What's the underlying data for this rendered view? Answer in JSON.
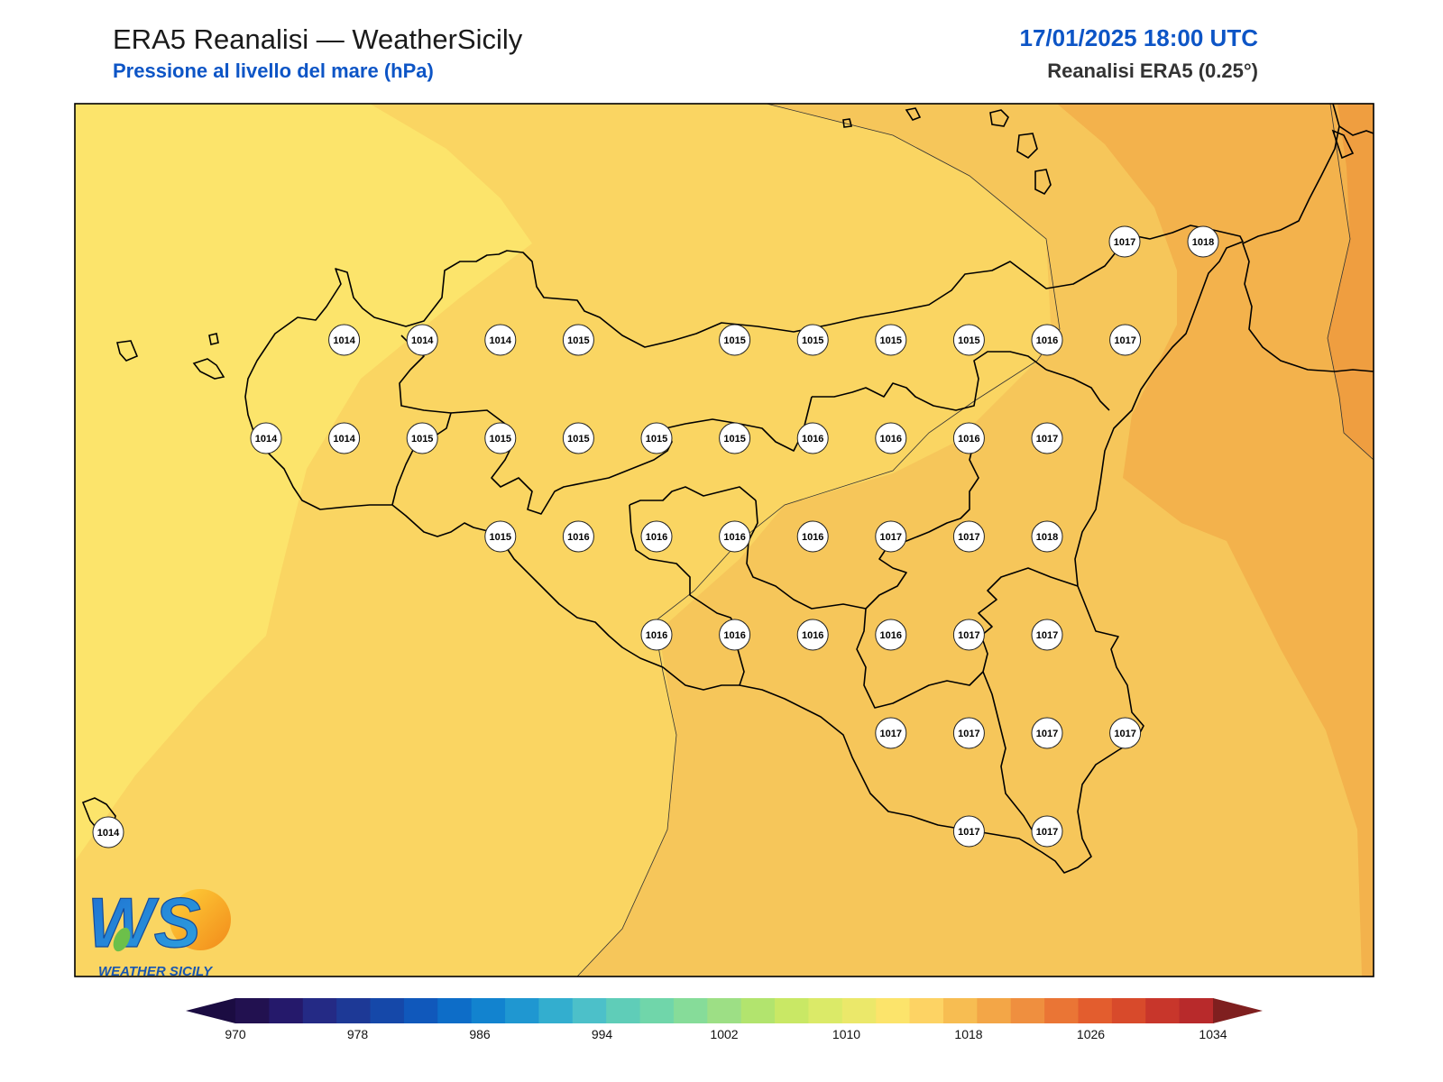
{
  "header": {
    "title": "ERA5 Reanalisi — WeatherSicily",
    "subtitle": "Pressione al livello del mare (hPa)",
    "datetime": "17/01/2025 18:00 UTC",
    "source": "Reanalisi ERA5 (0.25°)"
  },
  "logo": {
    "letters": "WS",
    "text": "WEATHER SICILY"
  },
  "colorbar": {
    "ticks": [
      "970",
      "978",
      "986",
      "994",
      "1002",
      "1010",
      "1018",
      "1026",
      "1034"
    ],
    "colors": [
      "#221150",
      "#25196b",
      "#242a85",
      "#1d3996",
      "#1548a9",
      "#1058bb",
      "#0d6dc8",
      "#1283cf",
      "#1f97d1",
      "#33aecf",
      "#4cc0c9",
      "#5fcdb8",
      "#70d6aa",
      "#86dc99",
      "#9ddf85",
      "#b2e46e",
      "#c9e865",
      "#dbea68",
      "#ebe86a",
      "#fce46b",
      "#fdd364",
      "#f7bd52",
      "#f3a647",
      "#ef8f3f",
      "#ea7535",
      "#e35d2e",
      "#d84a2b",
      "#c8362b",
      "#b82a2b"
    ],
    "under_color": "#1b0c42",
    "over_color": "#7f1f1f"
  },
  "map_colors": {
    "band_1013_1014": "#fce46b",
    "band_1014_1015": "#fad562",
    "band_1015_1016": "#f6c65a",
    "band_1016_1017": "#f3b24c",
    "band_1017_1018": "#ef9e40"
  },
  "stations": [
    {
      "label": "1014"
    },
    {
      "label": "1014"
    },
    {
      "label": "1014"
    },
    {
      "label": "1015"
    },
    {
      "label": "1015"
    },
    {
      "label": "1015"
    },
    {
      "label": "1015"
    },
    {
      "label": "1015"
    },
    {
      "label": "1016"
    },
    {
      "label": "1017"
    },
    {
      "label": "1014"
    },
    {
      "label": "1014"
    },
    {
      "label": "1015"
    },
    {
      "label": "1015"
    },
    {
      "label": "1015"
    },
    {
      "label": "1015"
    },
    {
      "label": "1015"
    },
    {
      "label": "1016"
    },
    {
      "label": "1016"
    },
    {
      "label": "1016"
    },
    {
      "label": "1017"
    },
    {
      "label": "1015"
    },
    {
      "label": "1016"
    },
    {
      "label": "1016"
    },
    {
      "label": "1016"
    },
    {
      "label": "1016"
    },
    {
      "label": "1017"
    },
    {
      "label": "1017"
    },
    {
      "label": "1018"
    },
    {
      "label": "1016"
    },
    {
      "label": "1016"
    },
    {
      "label": "1016"
    },
    {
      "label": "1016"
    },
    {
      "label": "1017"
    },
    {
      "label": "1017"
    },
    {
      "label": "1017"
    },
    {
      "label": "1017"
    },
    {
      "label": "1017"
    },
    {
      "label": "1017"
    },
    {
      "label": "1017"
    },
    {
      "label": "1017"
    },
    {
      "label": "1014"
    },
    {
      "label": "1017"
    },
    {
      "label": "1018"
    }
  ]
}
